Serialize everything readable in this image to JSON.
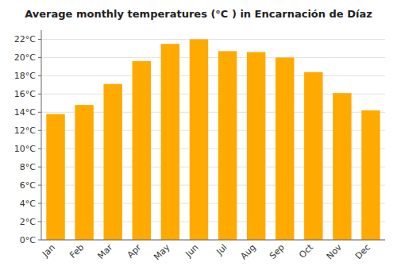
{
  "chart_data": {
    "type": "bar",
    "title": "Average monthly temperatures (°C ) in Encarnación de Díaz",
    "categories": [
      "Jan",
      "Feb",
      "Mar",
      "Apr",
      "May",
      "Jun",
      "Jul",
      "Aug",
      "Sep",
      "Oct",
      "Nov",
      "Dec"
    ],
    "values": [
      13.8,
      14.8,
      17.1,
      19.6,
      21.5,
      22.0,
      20.7,
      20.6,
      20.0,
      18.4,
      16.1,
      14.2
    ],
    "color": "#FFAA00",
    "ylim": [
      0,
      23
    ],
    "yticks": [
      {
        "value": 0,
        "label": "0°C"
      },
      {
        "value": 2,
        "label": "2°C"
      },
      {
        "value": 4,
        "label": "4°C"
      },
      {
        "value": 6,
        "label": "6°C"
      },
      {
        "value": 8,
        "label": "8°C"
      },
      {
        "value": 10,
        "label": "10°C"
      },
      {
        "value": 12,
        "label": "12°C"
      },
      {
        "value": 14,
        "label": "14°C"
      },
      {
        "value": 16,
        "label": "16°C"
      },
      {
        "value": 18,
        "label": "18°C"
      },
      {
        "value": 20,
        "label": "20°C"
      },
      {
        "value": 22,
        "label": "22°C"
      }
    ],
    "grid": true
  }
}
